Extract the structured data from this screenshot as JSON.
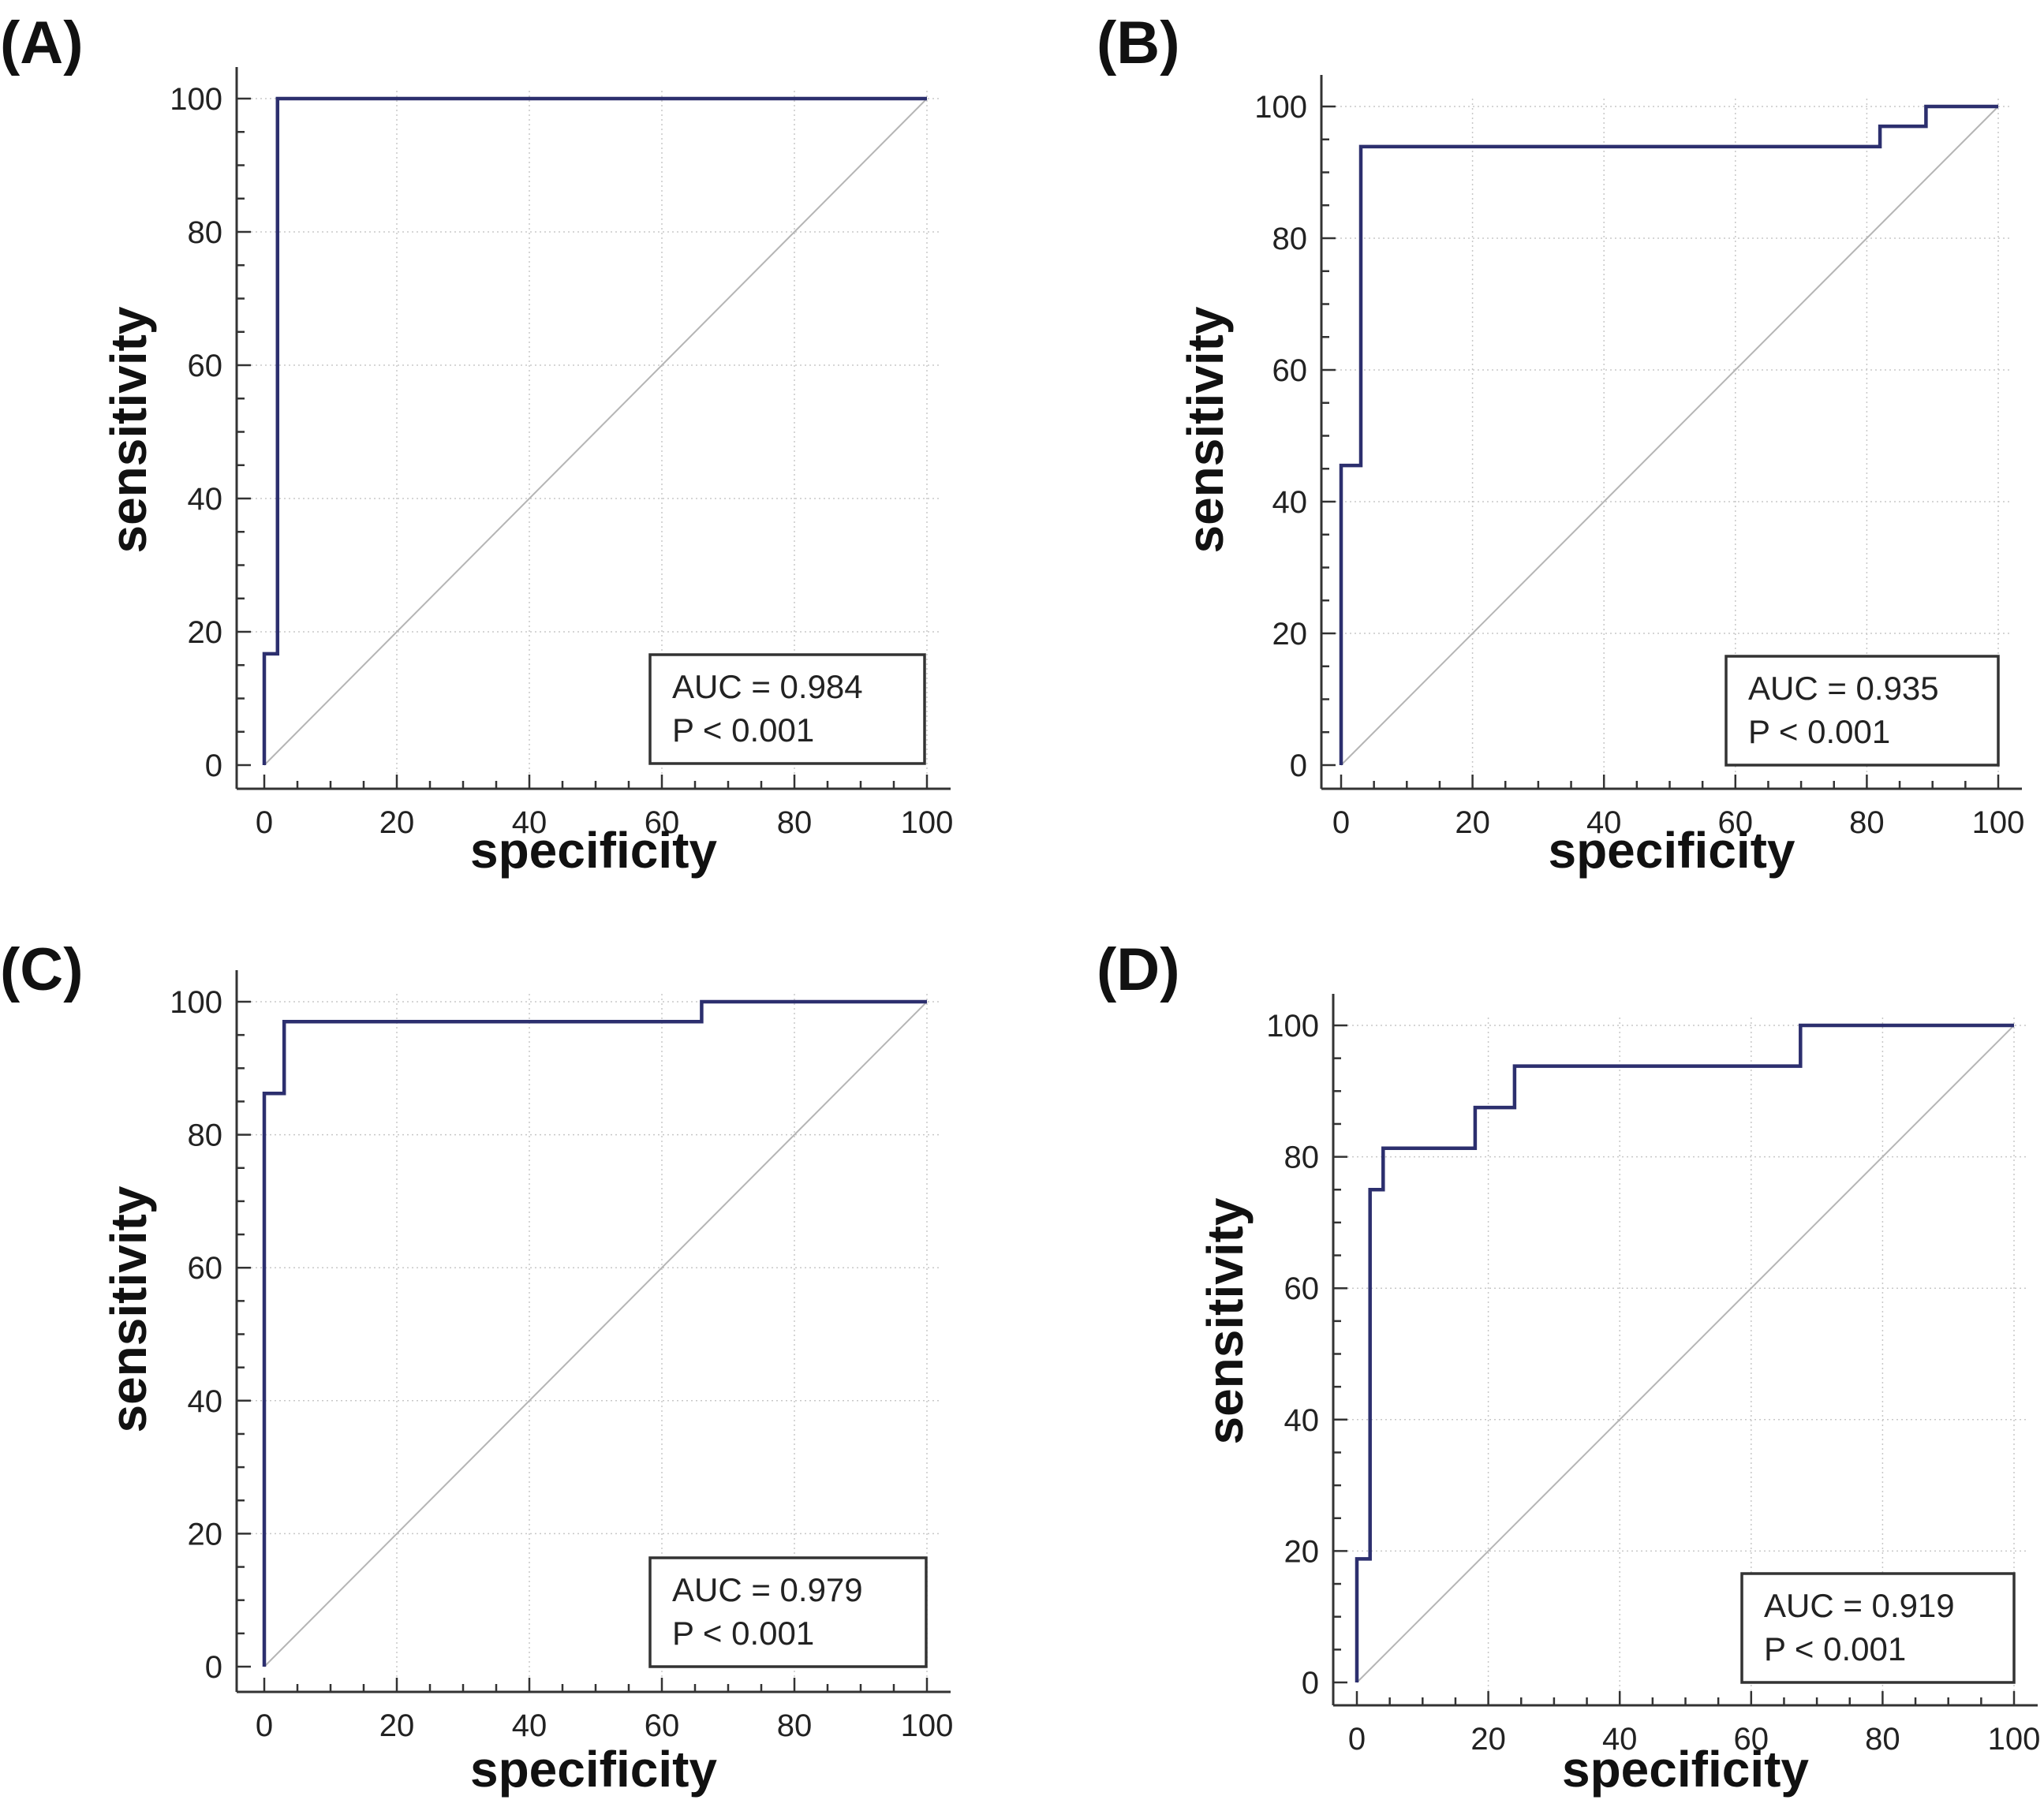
{
  "chart_data": [
    {
      "type": "line",
      "panel_label": "(A)",
      "xlabel": "specificity",
      "ylabel": "sensitivity",
      "xlim": [
        0,
        100
      ],
      "ylim": [
        0,
        100
      ],
      "xticks": [
        "0",
        "20",
        "40",
        "60",
        "80",
        "100"
      ],
      "yticks": [
        "0",
        "20",
        "40",
        "60",
        "80",
        "100"
      ],
      "grid": true,
      "legend": {
        "position": "bottom-right",
        "lines": [
          "AUC = 0.984",
          "P < 0.001"
        ]
      },
      "series": [
        {
          "name": "ROC curve",
          "x": [
            0,
            0,
            2,
            2,
            100
          ],
          "y": [
            0,
            16.7,
            16.7,
            100,
            100
          ]
        },
        {
          "name": "reference",
          "x": [
            0,
            100
          ],
          "y": [
            0,
            100
          ]
        }
      ]
    },
    {
      "type": "line",
      "panel_label": "(B)",
      "xlabel": "specificity",
      "ylabel": "sensitivity",
      "xlim": [
        0,
        100
      ],
      "ylim": [
        0,
        100
      ],
      "xticks": [
        "0",
        "20",
        "40",
        "60",
        "80",
        "100"
      ],
      "yticks": [
        "0",
        "20",
        "40",
        "60",
        "80",
        "100"
      ],
      "grid": true,
      "legend": {
        "position": "bottom-right",
        "lines": [
          "AUC = 0.935",
          "P < 0.001"
        ]
      },
      "series": [
        {
          "name": "ROC curve",
          "x": [
            0,
            0,
            3,
            3,
            82,
            82,
            89,
            89,
            100
          ],
          "y": [
            0,
            45.5,
            45.5,
            93.9,
            93.9,
            97,
            97,
            100,
            100
          ]
        },
        {
          "name": "reference",
          "x": [
            0,
            100
          ],
          "y": [
            0,
            100
          ]
        }
      ]
    },
    {
      "type": "line",
      "panel_label": "(C)",
      "xlabel": "specificity",
      "ylabel": "sensitivity",
      "xlim": [
        0,
        100
      ],
      "ylim": [
        0,
        100
      ],
      "xticks": [
        "0",
        "20",
        "40",
        "60",
        "80",
        "100"
      ],
      "yticks": [
        "0",
        "20",
        "40",
        "60",
        "80",
        "100"
      ],
      "grid": true,
      "legend": {
        "position": "bottom-right",
        "lines": [
          "AUC = 0.979",
          "P < 0.001"
        ]
      },
      "series": [
        {
          "name": "ROC curve",
          "x": [
            0,
            0,
            3,
            3,
            66,
            66,
            100
          ],
          "y": [
            0,
            86.2,
            86.2,
            97,
            97,
            100,
            100
          ]
        },
        {
          "name": "reference",
          "x": [
            0,
            100
          ],
          "y": [
            0,
            100
          ]
        }
      ]
    },
    {
      "type": "line",
      "panel_label": "(D)",
      "xlabel": "specificity",
      "ylabel": "sensitivity",
      "xlim": [
        0,
        100
      ],
      "ylim": [
        0,
        100
      ],
      "xticks": [
        "0",
        "20",
        "40",
        "60",
        "80",
        "100"
      ],
      "yticks": [
        "0",
        "20",
        "40",
        "60",
        "80",
        "100"
      ],
      "grid": true,
      "legend": {
        "position": "bottom-right",
        "lines": [
          "AUC = 0.919",
          "P < 0.001"
        ]
      },
      "series": [
        {
          "name": "ROC curve",
          "x": [
            0,
            0,
            2,
            2,
            4,
            4,
            18,
            18,
            24,
            24,
            67.5,
            67.5,
            100
          ],
          "y": [
            0,
            18.8,
            18.8,
            75,
            75,
            81.3,
            81.3,
            87.5,
            87.5,
            93.8,
            93.8,
            100,
            100
          ]
        },
        {
          "name": "reference",
          "x": [
            0,
            100
          ],
          "y": [
            0,
            100
          ]
        }
      ]
    }
  ]
}
